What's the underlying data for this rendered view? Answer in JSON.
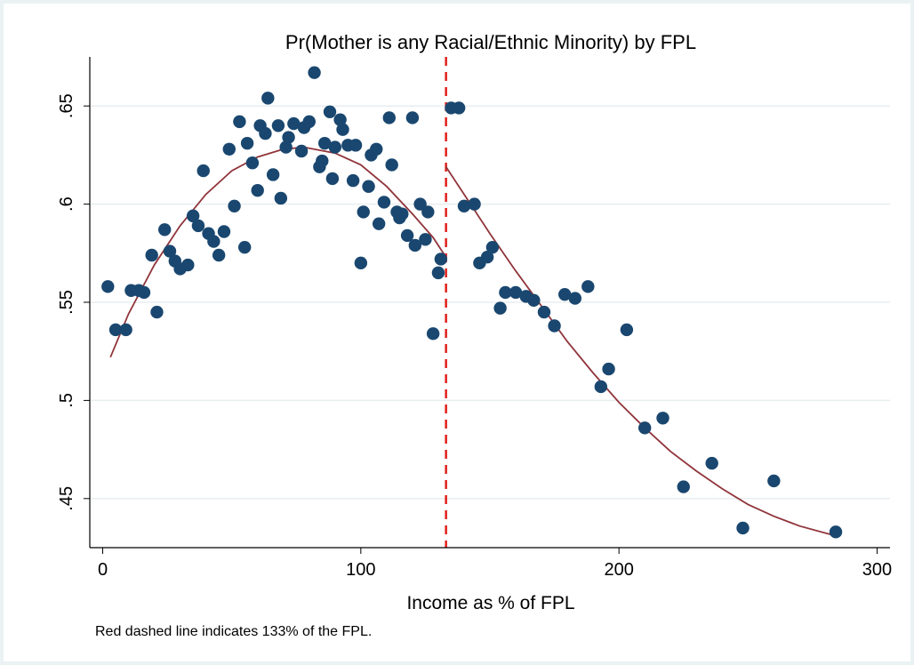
{
  "chart_data": {
    "type": "scatter",
    "title": "Pr(Mother is any Racial/Ethnic Minority) by FPL",
    "xlabel": "Income as % of FPL",
    "ylabel": "",
    "note": "Red dashed line indicates 133% of the FPL.",
    "xlim": [
      -5,
      305
    ],
    "ylim": [
      0.425,
      0.675
    ],
    "xticks": [
      0,
      100,
      200,
      300
    ],
    "xtick_labels": [
      "0",
      "100",
      "200",
      "300"
    ],
    "yticks": [
      0.45,
      0.5,
      0.55,
      0.6,
      0.65
    ],
    "ytick_labels": [
      ".45",
      ".5",
      ".55",
      ".6",
      ".65"
    ],
    "grid": "horizontal",
    "legend": "none",
    "cutoff": {
      "x": 133,
      "style": "dashed",
      "color": "#e0201b"
    },
    "colors": {
      "points": "#1a476f",
      "fit": "#90353b",
      "cutoff": "#e0201b",
      "grid": "#e8eef0"
    },
    "points": [
      {
        "x": 2,
        "y": 0.558
      },
      {
        "x": 5,
        "y": 0.536
      },
      {
        "x": 9,
        "y": 0.536
      },
      {
        "x": 11,
        "y": 0.556
      },
      {
        "x": 14,
        "y": 0.556
      },
      {
        "x": 16,
        "y": 0.555
      },
      {
        "x": 19,
        "y": 0.574
      },
      {
        "x": 21,
        "y": 0.545
      },
      {
        "x": 24,
        "y": 0.587
      },
      {
        "x": 26,
        "y": 0.576
      },
      {
        "x": 28,
        "y": 0.571
      },
      {
        "x": 30,
        "y": 0.567
      },
      {
        "x": 33,
        "y": 0.569
      },
      {
        "x": 35,
        "y": 0.594
      },
      {
        "x": 37,
        "y": 0.589
      },
      {
        "x": 39,
        "y": 0.617
      },
      {
        "x": 41,
        "y": 0.585
      },
      {
        "x": 43,
        "y": 0.581
      },
      {
        "x": 45,
        "y": 0.574
      },
      {
        "x": 47,
        "y": 0.586
      },
      {
        "x": 49,
        "y": 0.628
      },
      {
        "x": 51,
        "y": 0.599
      },
      {
        "x": 53,
        "y": 0.642
      },
      {
        "x": 55,
        "y": 0.578
      },
      {
        "x": 56,
        "y": 0.631
      },
      {
        "x": 58,
        "y": 0.621
      },
      {
        "x": 60,
        "y": 0.607
      },
      {
        "x": 61,
        "y": 0.64
      },
      {
        "x": 63,
        "y": 0.636
      },
      {
        "x": 64,
        "y": 0.654
      },
      {
        "x": 66,
        "y": 0.615
      },
      {
        "x": 68,
        "y": 0.64
      },
      {
        "x": 69,
        "y": 0.603
      },
      {
        "x": 71,
        "y": 0.629
      },
      {
        "x": 72,
        "y": 0.634
      },
      {
        "x": 74,
        "y": 0.641
      },
      {
        "x": 77,
        "y": 0.627
      },
      {
        "x": 78,
        "y": 0.639
      },
      {
        "x": 80,
        "y": 0.642
      },
      {
        "x": 82,
        "y": 0.667
      },
      {
        "x": 84,
        "y": 0.619
      },
      {
        "x": 85,
        "y": 0.622
      },
      {
        "x": 86,
        "y": 0.631
      },
      {
        "x": 88,
        "y": 0.647
      },
      {
        "x": 89,
        "y": 0.613
      },
      {
        "x": 90,
        "y": 0.629
      },
      {
        "x": 92,
        "y": 0.643
      },
      {
        "x": 93,
        "y": 0.638
      },
      {
        "x": 95,
        "y": 0.63
      },
      {
        "x": 97,
        "y": 0.612
      },
      {
        "x": 98,
        "y": 0.63
      },
      {
        "x": 100,
        "y": 0.57
      },
      {
        "x": 101,
        "y": 0.596
      },
      {
        "x": 103,
        "y": 0.609
      },
      {
        "x": 104,
        "y": 0.625
      },
      {
        "x": 106,
        "y": 0.628
      },
      {
        "x": 107,
        "y": 0.59
      },
      {
        "x": 109,
        "y": 0.601
      },
      {
        "x": 111,
        "y": 0.644
      },
      {
        "x": 112,
        "y": 0.62
      },
      {
        "x": 114,
        "y": 0.596
      },
      {
        "x": 115,
        "y": 0.593
      },
      {
        "x": 116,
        "y": 0.595
      },
      {
        "x": 118,
        "y": 0.584
      },
      {
        "x": 120,
        "y": 0.644
      },
      {
        "x": 121,
        "y": 0.579
      },
      {
        "x": 123,
        "y": 0.6
      },
      {
        "x": 125,
        "y": 0.582
      },
      {
        "x": 126,
        "y": 0.596
      },
      {
        "x": 128,
        "y": 0.534
      },
      {
        "x": 130,
        "y": 0.565
      },
      {
        "x": 131,
        "y": 0.572
      },
      {
        "x": 135,
        "y": 0.649
      },
      {
        "x": 138,
        "y": 0.649
      },
      {
        "x": 140,
        "y": 0.599
      },
      {
        "x": 144,
        "y": 0.6
      },
      {
        "x": 146,
        "y": 0.57
      },
      {
        "x": 149,
        "y": 0.573
      },
      {
        "x": 151,
        "y": 0.578
      },
      {
        "x": 154,
        "y": 0.547
      },
      {
        "x": 156,
        "y": 0.555
      },
      {
        "x": 160,
        "y": 0.555
      },
      {
        "x": 164,
        "y": 0.553
      },
      {
        "x": 167,
        "y": 0.551
      },
      {
        "x": 171,
        "y": 0.545
      },
      {
        "x": 175,
        "y": 0.538
      },
      {
        "x": 179,
        "y": 0.554
      },
      {
        "x": 183,
        "y": 0.552
      },
      {
        "x": 188,
        "y": 0.558
      },
      {
        "x": 193,
        "y": 0.507
      },
      {
        "x": 196,
        "y": 0.516
      },
      {
        "x": 203,
        "y": 0.536
      },
      {
        "x": 210,
        "y": 0.486
      },
      {
        "x": 217,
        "y": 0.491
      },
      {
        "x": 225,
        "y": 0.456
      },
      {
        "x": 236,
        "y": 0.468
      },
      {
        "x": 248,
        "y": 0.435
      },
      {
        "x": 260,
        "y": 0.459
      },
      {
        "x": 284,
        "y": 0.433
      }
    ],
    "fit_left": [
      {
        "x": 3,
        "y": 0.522
      },
      {
        "x": 10,
        "y": 0.544
      },
      {
        "x": 20,
        "y": 0.569
      },
      {
        "x": 30,
        "y": 0.589
      },
      {
        "x": 40,
        "y": 0.605
      },
      {
        "x": 50,
        "y": 0.617
      },
      {
        "x": 60,
        "y": 0.624
      },
      {
        "x": 70,
        "y": 0.628
      },
      {
        "x": 78,
        "y": 0.629
      },
      {
        "x": 90,
        "y": 0.626
      },
      {
        "x": 100,
        "y": 0.62
      },
      {
        "x": 110,
        "y": 0.609
      },
      {
        "x": 120,
        "y": 0.595
      },
      {
        "x": 128,
        "y": 0.583
      },
      {
        "x": 133,
        "y": 0.573
      }
    ],
    "fit_right": [
      {
        "x": 133,
        "y": 0.619
      },
      {
        "x": 140,
        "y": 0.605
      },
      {
        "x": 150,
        "y": 0.585
      },
      {
        "x": 160,
        "y": 0.566
      },
      {
        "x": 170,
        "y": 0.548
      },
      {
        "x": 180,
        "y": 0.53
      },
      {
        "x": 190,
        "y": 0.514
      },
      {
        "x": 200,
        "y": 0.499
      },
      {
        "x": 210,
        "y": 0.486
      },
      {
        "x": 220,
        "y": 0.474
      },
      {
        "x": 230,
        "y": 0.464
      },
      {
        "x": 240,
        "y": 0.455
      },
      {
        "x": 250,
        "y": 0.447
      },
      {
        "x": 260,
        "y": 0.441
      },
      {
        "x": 270,
        "y": 0.436
      },
      {
        "x": 284,
        "y": 0.431
      }
    ]
  }
}
